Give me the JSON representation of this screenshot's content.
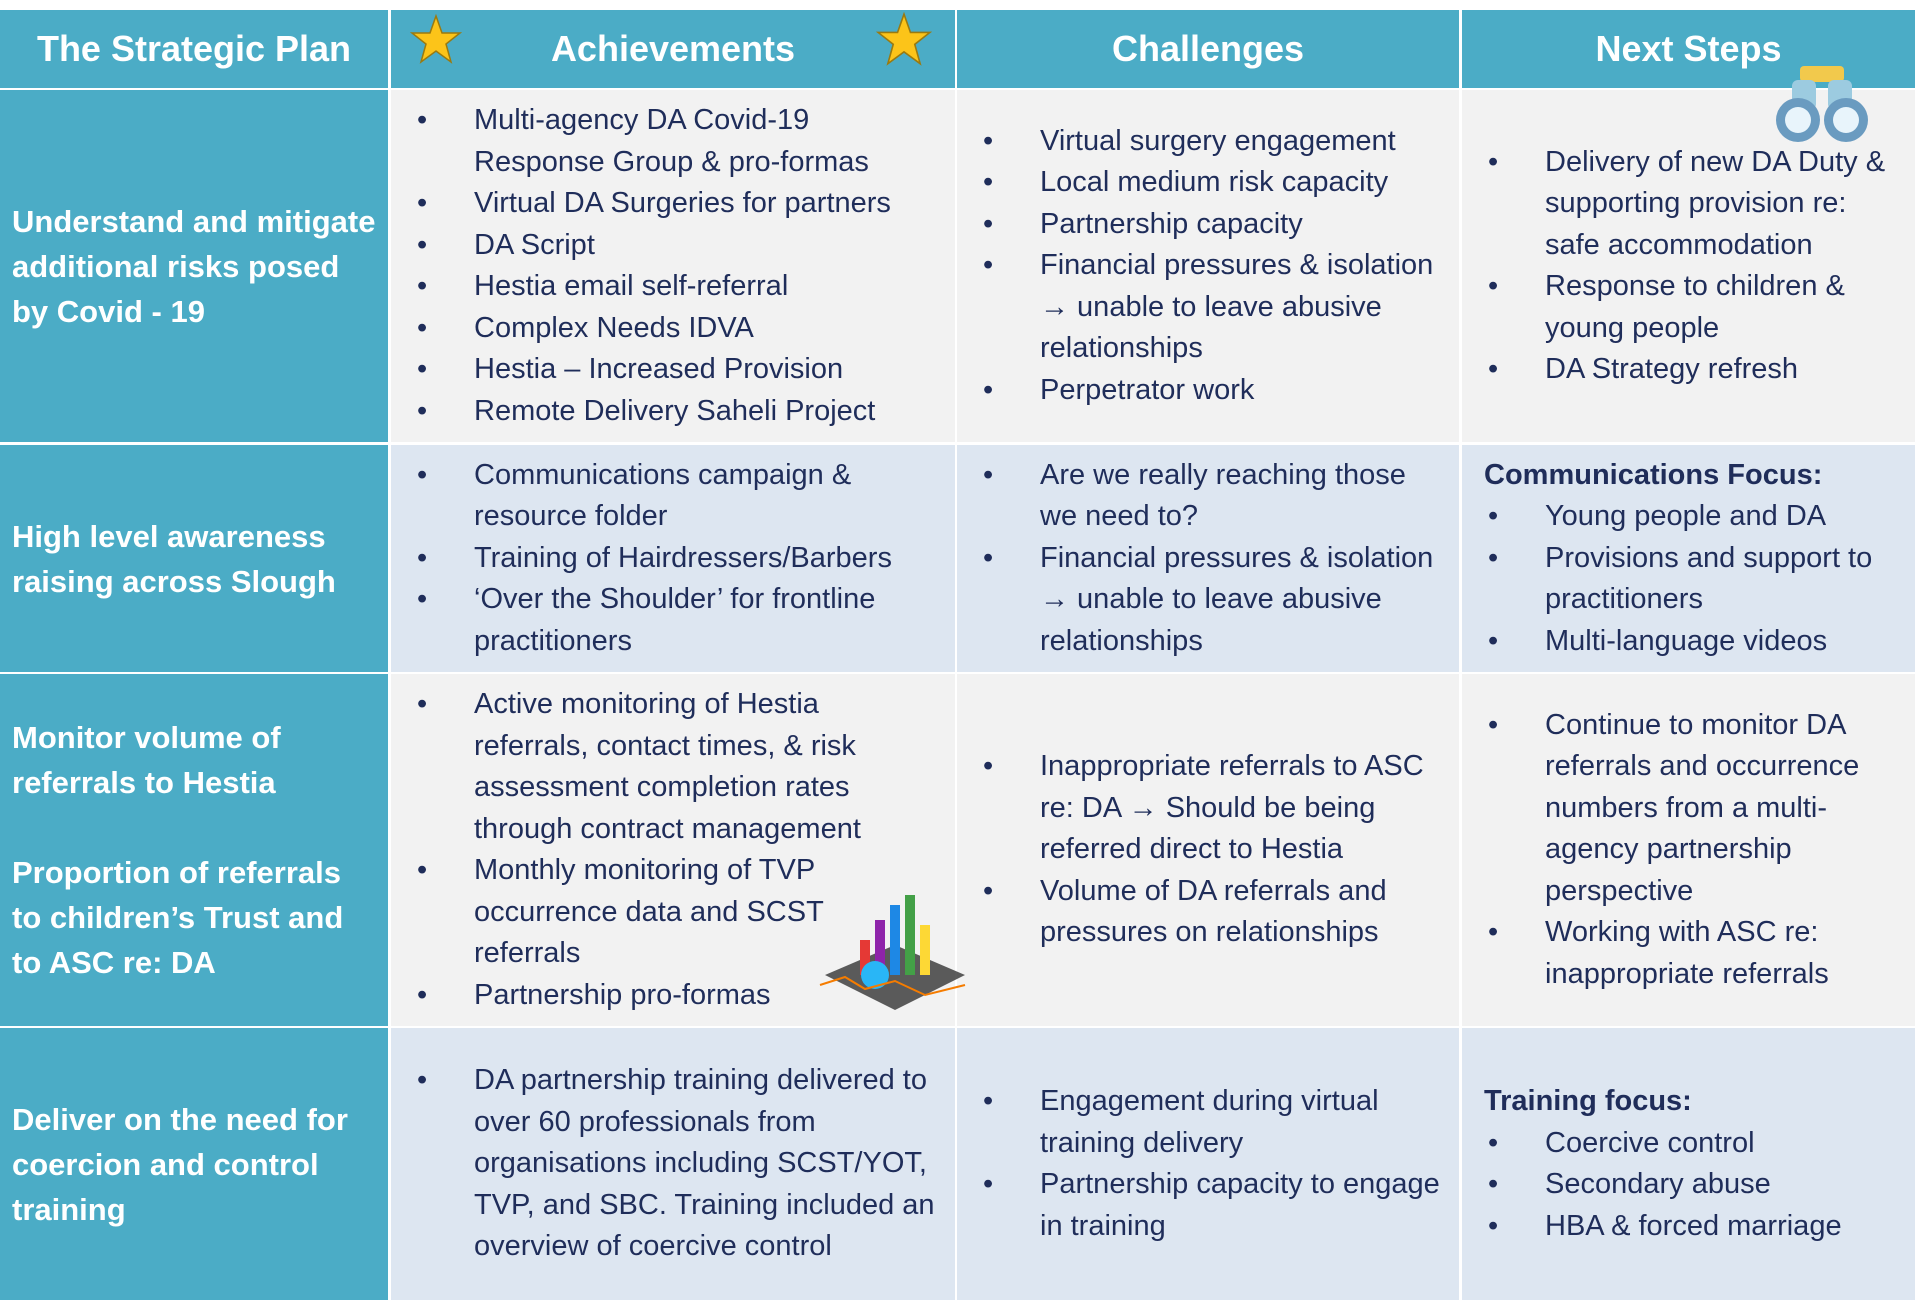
{
  "headers": [
    "The Strategic Plan",
    "Achievements",
    "Challenges",
    "Next Steps"
  ],
  "rows": [
    {
      "label": [
        "Understand and mitigate additional risks posed by   Covid - 19"
      ],
      "achievements": [
        "Multi-agency DA Covid-19 Response Group & pro-formas",
        "Virtual DA Surgeries for partners",
        "DA Script",
        "Hestia email self-referral",
        "Complex Needs IDVA",
        "Hestia – Increased Provision",
        "Remote Delivery Saheli Project"
      ],
      "challenges": [
        "Virtual surgery engagement",
        "Local medium risk capacity",
        "Partnership capacity",
        "Financial pressures & isolation → unable to leave abusive relationships",
        "Perpetrator work"
      ],
      "next_steps": {
        "items": [
          "Delivery of new DA Duty & supporting provision re: safe accommodation",
          "Response to children & young people",
          "DA Strategy  refresh"
        ]
      }
    },
    {
      "label": [
        "High level awareness raising across Slough"
      ],
      "achievements": [
        "Communications campaign & resource folder",
        "Training of Hairdressers/Barbers",
        "‘Over the Shoulder’ for frontline practitioners"
      ],
      "challenges": [
        "Are we really reaching those we need to?",
        "Financial pressures & isolation → unable to leave abusive relationships"
      ],
      "next_steps": {
        "heading": "Communications Focus:",
        "items": [
          "Young people and DA",
          "Provisions and support to practitioners",
          "Multi-language videos"
        ]
      }
    },
    {
      "label": [
        "Monitor volume of referrals to Hestia",
        "Proportion of referrals to children’s Trust and to ASC re: DA"
      ],
      "achievements": [
        "Active monitoring of Hestia referrals, contact times, & risk assessment completion rates through contract management",
        "Monthly monitoring of TVP occurrence data and SCST referrals",
        "Partnership pro-formas"
      ],
      "challenges": [
        "Inappropriate referrals to ASC re: DA → Should be being referred direct to Hestia",
        "Volume of DA referrals and pressures on relationships"
      ],
      "next_steps": {
        "items": [
          "Continue to monitor DA referrals and occurrence numbers from a multi-agency partnership perspective",
          "Working with ASC re: inappropriate referrals"
        ]
      }
    },
    {
      "label": [
        "Deliver on the need for coercion and control training"
      ],
      "achievements": [
        "DA partnership training delivered to over 60 professionals from organisations including SCST/YOT, TVP, and SBC. Training included an overview of coercive control"
      ],
      "challenges": [
        "Engagement during virtual training delivery",
        "Partnership capacity to engage in training"
      ],
      "next_steps": {
        "heading": "Training focus:",
        "items": [
          "Coercive control",
          "Secondary abuse",
          "HBA & forced marriage"
        ]
      }
    }
  ]
}
